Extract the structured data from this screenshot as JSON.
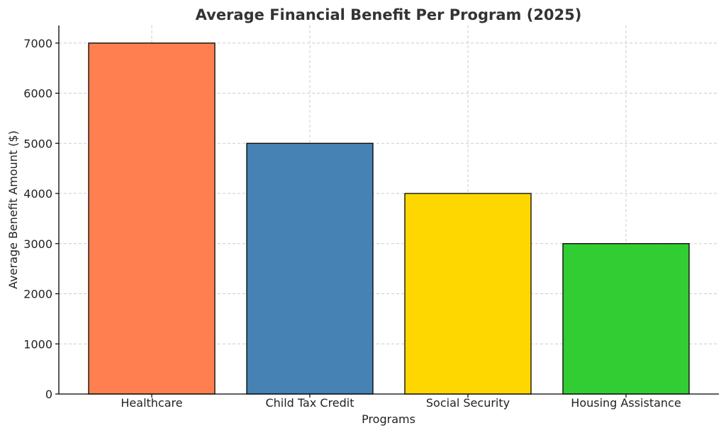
{
  "chart_data": {
    "type": "bar",
    "title": "Average Financial Benefit Per Program (2025)",
    "xlabel": "Programs",
    "ylabel": "Average Benefit Amount ($)",
    "categories": [
      "Healthcare",
      "Child Tax Credit",
      "Social Security",
      "Housing Assistance"
    ],
    "values": [
      7000,
      5000,
      4000,
      3000
    ],
    "colors": [
      "#FF7F50",
      "#4682B4",
      "#FFD700",
      "#32CD32"
    ],
    "ylim": [
      0,
      7350
    ],
    "yticks": [
      0,
      1000,
      2000,
      3000,
      4000,
      5000,
      6000,
      7000
    ],
    "grid": true,
    "legend": "none"
  }
}
